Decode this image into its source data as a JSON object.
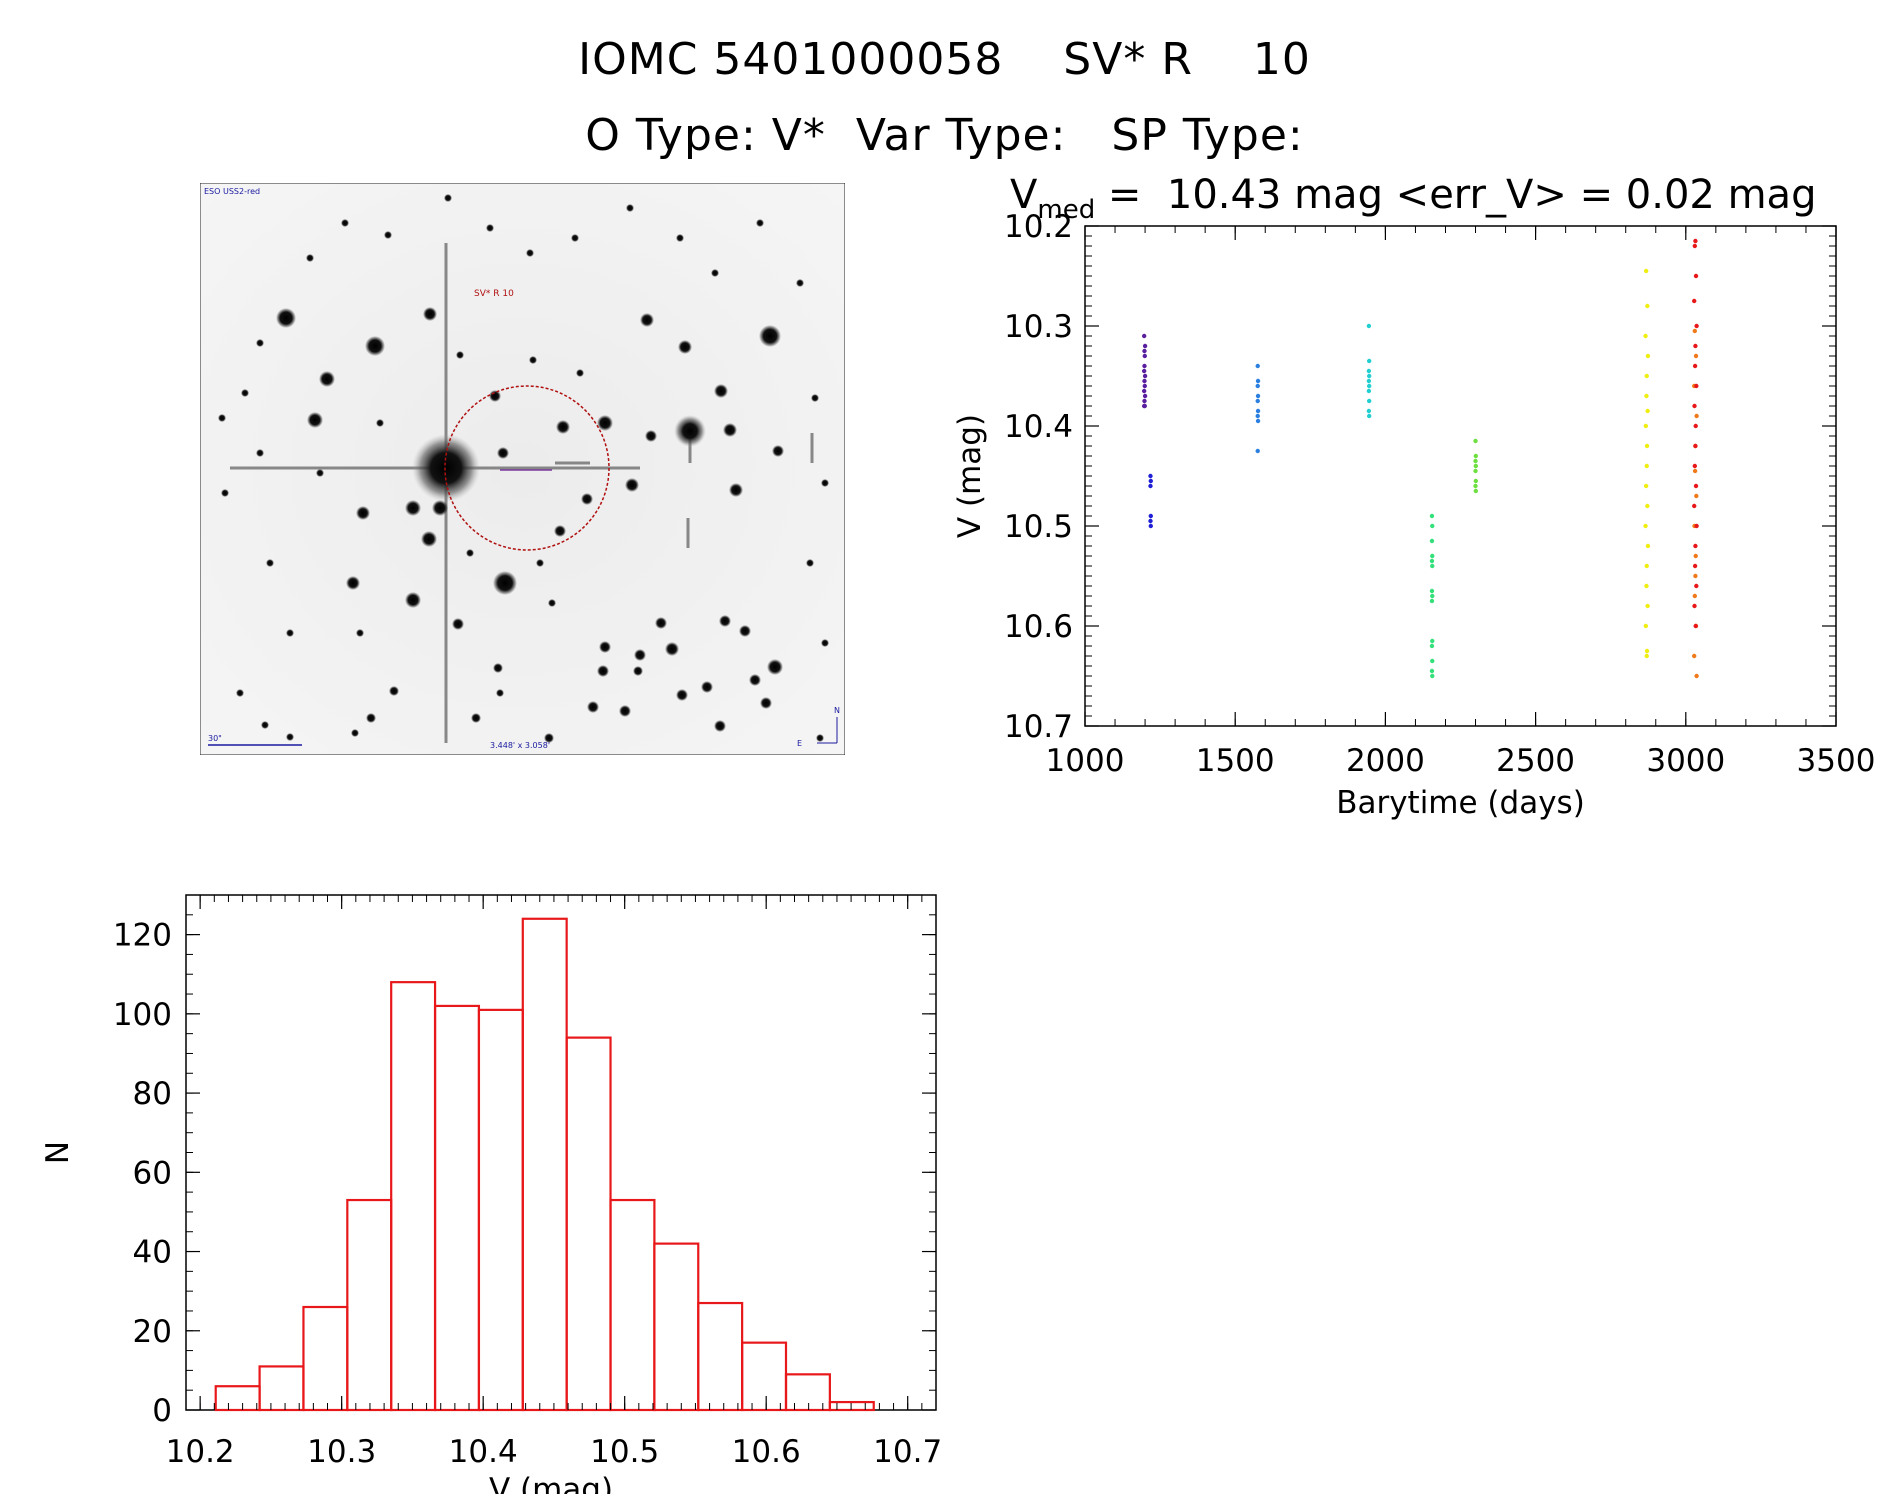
{
  "header": {
    "line1": "IOMC 5401000058    SV* R    10",
    "line2": "O Type: V*  Var Type:   SP Type:"
  },
  "lightcurve_title": {
    "v": "V",
    "sub": "med",
    "rest": " =  10.43 mag <err_V> = 0.02 mag"
  },
  "finder": {
    "survey_label": "ESO USS2-red",
    "target_label": "SV* R 10",
    "scale_label": "30\"",
    "fov_label": "3.448' x 3.058'",
    "north_label": "N",
    "east_label": "E"
  },
  "chart_data": [
    {
      "type": "scatter",
      "xlabel": "Barytime (days)",
      "ylabel": "V (mag)",
      "xlim": [
        1000,
        3500
      ],
      "ylim": [
        10.7,
        10.2
      ],
      "y_inverted": true,
      "xticks": [
        1000,
        1500,
        2000,
        2500,
        3000,
        3500
      ],
      "yticks": [
        10.2,
        10.3,
        10.4,
        10.5,
        10.6,
        10.7
      ],
      "series": [
        {
          "color": "#5a1f9e",
          "x": [
            1197,
            1198,
            1199,
            1197,
            1200,
            1198,
            1199,
            1197,
            1200,
            1198,
            1199,
            1197,
            1200,
            1198
          ],
          "y": [
            10.31,
            10.325,
            10.33,
            10.345,
            10.35,
            10.355,
            10.36,
            10.365,
            10.37,
            10.375,
            10.38,
            10.38,
            10.32,
            10.34
          ]
        },
        {
          "color": "#1f1fd6",
          "x": [
            1218,
            1219,
            1218,
            1219,
            1218,
            1219
          ],
          "y": [
            10.45,
            10.455,
            10.46,
            10.49,
            10.495,
            10.5
          ]
        },
        {
          "color": "#2a7fe0",
          "x": [
            1575,
            1576,
            1575,
            1576,
            1575,
            1576,
            1575,
            1576,
            1575
          ],
          "y": [
            10.34,
            10.355,
            10.36,
            10.37,
            10.375,
            10.385,
            10.39,
            10.395,
            10.425
          ]
        },
        {
          "color": "#22cfd0",
          "x": [
            1945,
            1946,
            1945,
            1946,
            1945,
            1946,
            1945,
            1946,
            1945,
            1946
          ],
          "y": [
            10.3,
            10.335,
            10.345,
            10.35,
            10.355,
            10.36,
            10.365,
            10.375,
            10.385,
            10.39
          ]
        },
        {
          "color": "#33e07a",
          "x": [
            2155,
            2156,
            2155,
            2156,
            2155,
            2156,
            2155,
            2156,
            2155,
            2156,
            2155,
            2156,
            2155,
            2156
          ],
          "y": [
            10.49,
            10.5,
            10.515,
            10.53,
            10.535,
            10.54,
            10.565,
            10.57,
            10.575,
            10.615,
            10.62,
            10.635,
            10.645,
            10.65
          ]
        },
        {
          "color": "#6de040",
          "x": [
            2300,
            2301,
            2300,
            2301,
            2300,
            2301,
            2300,
            2301
          ],
          "y": [
            10.415,
            10.43,
            10.435,
            10.44,
            10.445,
            10.455,
            10.46,
            10.465
          ]
        },
        {
          "color": "#f0ee10",
          "x": [
            2868,
            2872,
            2866,
            2874,
            2870,
            2869,
            2873,
            2867,
            2871,
            2870,
            2868,
            2872,
            2866,
            2874,
            2870,
            2869,
            2873,
            2867,
            2871,
            2870
          ],
          "y": [
            10.245,
            10.28,
            10.31,
            10.33,
            10.35,
            10.37,
            10.385,
            10.4,
            10.42,
            10.44,
            10.46,
            10.48,
            10.5,
            10.52,
            10.54,
            10.56,
            10.58,
            10.6,
            10.625,
            10.63
          ]
        },
        {
          "color": "#f07a1a",
          "x": [
            3030,
            3034,
            3028,
            3036,
            3032,
            3031,
            3035,
            3029,
            3033,
            3032,
            3030,
            3034,
            3028,
            3036
          ],
          "y": [
            10.305,
            10.33,
            10.36,
            10.39,
            10.42,
            10.445,
            10.47,
            10.5,
            10.53,
            10.55,
            10.57,
            10.6,
            10.63,
            10.65
          ]
        },
        {
          "color": "#e8181a",
          "x": [
            3032,
            3030,
            3034,
            3028,
            3036,
            3032,
            3031,
            3035,
            3029,
            3033,
            3032,
            3030,
            3034,
            3028,
            3036,
            3032,
            3031,
            3035,
            3029,
            3033
          ],
          "y": [
            10.215,
            10.22,
            10.25,
            10.275,
            10.3,
            10.32,
            10.34,
            10.36,
            10.38,
            10.4,
            10.42,
            10.44,
            10.46,
            10.48,
            10.5,
            10.52,
            10.54,
            10.56,
            10.58,
            10.6
          ]
        }
      ]
    },
    {
      "type": "bar",
      "xlabel": "V (mag)",
      "ylabel": "N",
      "xlim": [
        10.19,
        10.72
      ],
      "ylim": [
        0,
        130
      ],
      "xticks": [
        10.2,
        10.3,
        10.4,
        10.5,
        10.6,
        10.7
      ],
      "yticks": [
        0,
        20,
        40,
        60,
        80,
        100,
        120
      ],
      "bin_edges": [
        10.211,
        10.242,
        10.273,
        10.304,
        10.335,
        10.366,
        10.397,
        10.428,
        10.459,
        10.49,
        10.521,
        10.552,
        10.583,
        10.614,
        10.645,
        10.676
      ],
      "values": [
        6,
        11,
        26,
        53,
        108,
        102,
        101,
        124,
        94,
        53,
        42,
        27,
        17,
        9,
        2
      ],
      "color": "#e8181a"
    }
  ]
}
